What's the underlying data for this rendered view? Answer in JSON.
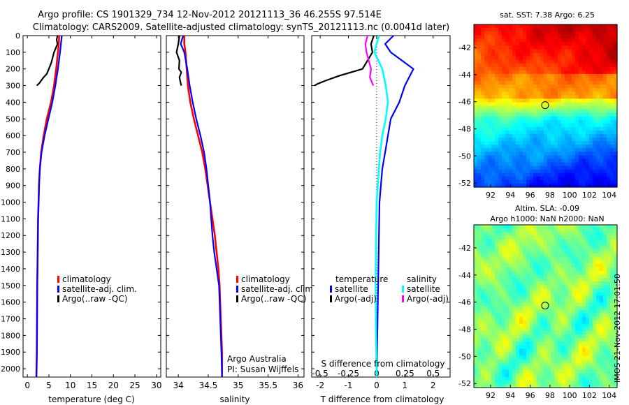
{
  "header": {
    "line1": "Argo profile: CS 1901329_734 12-Nov-2012 20121113_36 46.255S 97.514E",
    "line2": "Climatology: CARS2009. Satellite-adjusted climatology: synTS_20121113.nc (0.0041d later)"
  },
  "stamp": "IMOS 21-Nov-2012 17:01:50",
  "colors": {
    "climatology": "#ff0000",
    "satellite": "#0000ff",
    "argo": "#000000",
    "satellite_s": "#00ffff",
    "argo_s": "#ff00ff",
    "marker": "#000000"
  },
  "chart_data": [
    {
      "id": "temperature",
      "type": "line",
      "xlabel": "temperature (deg C)",
      "ylabel": "",
      "xlim": [
        -1,
        31
      ],
      "ylim": [
        2050,
        0
      ],
      "xticks": [
        "0",
        "5",
        "10",
        "15",
        "20",
        "25",
        "30"
      ],
      "xtick_values": [
        0,
        5,
        10,
        15,
        20,
        25,
        30
      ],
      "yticks": [
        "0",
        "100",
        "200",
        "300",
        "400",
        "500",
        "600",
        "700",
        "800",
        "900",
        "1000",
        "1100",
        "1200",
        "1300",
        "1400",
        "1500",
        "1600",
        "1700",
        "1800",
        "1900",
        "2000"
      ],
      "ytick_values": [
        0,
        100,
        200,
        300,
        400,
        500,
        600,
        700,
        800,
        900,
        1000,
        1100,
        1200,
        1300,
        1400,
        1500,
        1600,
        1700,
        1800,
        1900,
        2000
      ],
      "legend": [
        "climatology",
        "satellite-adj. clim.",
        "Argo(..raw -QC)"
      ],
      "series": [
        {
          "name": "climatology",
          "color_key": "climatology",
          "width": 2.6,
          "x": [
            7.4,
            7.3,
            7.1,
            6.7,
            6.2,
            5.5,
            4.5,
            3.8,
            3.2,
            2.9,
            2.7,
            2.6,
            2.5,
            2.45,
            2.4,
            2.35,
            2.3,
            2.25,
            2.2,
            2.1
          ],
          "y": [
            0,
            50,
            100,
            200,
            300,
            400,
            500,
            600,
            700,
            800,
            900,
            1000,
            1100,
            1200,
            1300,
            1400,
            1500,
            1700,
            1900,
            2050
          ]
        },
        {
          "name": "satellite-adj. clim.",
          "color_key": "satellite",
          "width": 2.2,
          "x": [
            8.0,
            7.8,
            7.6,
            7.1,
            6.5,
            5.8,
            4.9,
            4.0,
            3.3,
            2.9,
            2.7,
            2.6,
            2.5,
            2.45,
            2.4,
            2.35,
            2.3,
            2.25,
            2.2,
            2.1
          ],
          "y": [
            0,
            50,
            100,
            200,
            300,
            400,
            500,
            600,
            700,
            800,
            900,
            1000,
            1100,
            1200,
            1300,
            1400,
            1500,
            1700,
            1900,
            2050
          ]
        },
        {
          "name": "Argo(..raw -QC)",
          "color_key": "argo",
          "width": 2.2,
          "x": [
            7.0,
            6.8,
            7.0,
            6.2,
            5.6,
            5.0,
            4.5,
            3.8,
            3.2,
            2.8,
            2.2
          ],
          "y": [
            0,
            25,
            50,
            100,
            160,
            200,
            230,
            250,
            270,
            285,
            300
          ]
        }
      ]
    },
    {
      "id": "salinity",
      "type": "line",
      "xlabel": "salinity",
      "ylabel": "",
      "xlim": [
        33.8,
        36.1
      ],
      "ylim": [
        2050,
        0
      ],
      "xticks": [
        "34",
        "34.5",
        "35",
        "35.5",
        "36"
      ],
      "xtick_values": [
        34,
        34.5,
        35,
        35.5,
        36
      ],
      "legend": [
        "climatology",
        "satellite-adj. clim.",
        "Argo(..raw -QC)"
      ],
      "notes": [
        "Argo Australia",
        "PI: Susan Wijffels"
      ],
      "series": [
        {
          "name": "climatology",
          "color_key": "climatology",
          "width": 2.6,
          "x": [
            34.1,
            34.1,
            34.12,
            34.14,
            34.16,
            34.2,
            34.26,
            34.33,
            34.4,
            34.45,
            34.49,
            34.53,
            34.57,
            34.61,
            34.64,
            34.67,
            34.69,
            34.71,
            34.73,
            34.73
          ],
          "y": [
            0,
            50,
            100,
            200,
            300,
            400,
            500,
            600,
            700,
            800,
            900,
            1000,
            1100,
            1200,
            1300,
            1400,
            1500,
            1700,
            1900,
            2050
          ]
        },
        {
          "name": "satellite-adj. clim.",
          "color_key": "satellite",
          "width": 2.2,
          "x": [
            34.08,
            34.04,
            34.1,
            34.15,
            34.19,
            34.24,
            34.3,
            34.37,
            34.43,
            34.47,
            34.5,
            34.53,
            34.55,
            34.57,
            34.6,
            34.64,
            34.68,
            34.7,
            34.72,
            34.73
          ],
          "y": [
            0,
            50,
            100,
            200,
            300,
            400,
            500,
            600,
            700,
            800,
            900,
            1000,
            1100,
            1200,
            1300,
            1400,
            1500,
            1700,
            1900,
            2050
          ]
        },
        {
          "name": "Argo(..raw -QC)",
          "color_key": "argo",
          "width": 2.2,
          "x": [
            34.02,
            34.0,
            33.97,
            34.02,
            34.01,
            34.05,
            34.02,
            34.03,
            34.05
          ],
          "y": [
            0,
            50,
            100,
            150,
            200,
            220,
            250,
            270,
            300
          ]
        }
      ]
    },
    {
      "id": "difference",
      "type": "line",
      "xlabel": "T difference from climatology",
      "xlabel_top": "S difference from climatology",
      "ylabel": "",
      "xlim": [
        -2.3,
        2.6
      ],
      "ylim": [
        2050,
        0
      ],
      "xticks": [
        "-2",
        "-1",
        "0",
        "1",
        "2"
      ],
      "xtick_values": [
        -2,
        -1,
        0,
        1,
        2
      ],
      "s_ticks": [
        "-0.5",
        "-0.25",
        "0",
        "0.25",
        "0.5"
      ],
      "s_tick_values": [
        -0.5,
        -0.25,
        0,
        0.25,
        0.5
      ],
      "s_scale": 4,
      "legend_titles": [
        "temperature",
        "salinity"
      ],
      "legend": [
        "satellite",
        "Argo(-adj)",
        "satellite",
        "Argo(-adj)"
      ],
      "series": [
        {
          "name": "satellite",
          "group": "temperature",
          "color_key": "satellite",
          "width": 2.2,
          "x": [
            0.6,
            0.3,
            0.5,
            1.3,
            1.0,
            0.8,
            0.5,
            0.4,
            0.3,
            0.2,
            0.1,
            0.0
          ],
          "y": [
            0,
            50,
            100,
            200,
            300,
            400,
            500,
            600,
            700,
            800,
            1000,
            2050
          ]
        },
        {
          "name": "Argo(-adj)",
          "group": "temperature",
          "color_key": "argo",
          "width": 2.2,
          "x": [
            -0.1,
            -0.2,
            -0.15,
            -0.5,
            -1.3,
            -1.8,
            -2.1,
            -2.2
          ],
          "y": [
            0,
            50,
            100,
            200,
            240,
            270,
            290,
            300
          ]
        },
        {
          "name": "satellite",
          "group": "salinity",
          "color_key": "satellite_s",
          "width": 2.6,
          "x": [
            0.02,
            0.0,
            -0.02,
            0.05,
            0.08,
            0.1,
            0.08,
            0.05,
            0.03,
            0.02,
            0.0,
            -0.01,
            0.0
          ],
          "y": [
            0,
            50,
            100,
            200,
            300,
            400,
            500,
            600,
            700,
            800,
            1000,
            1500,
            2050
          ]
        },
        {
          "name": "Argo(-adj)",
          "group": "salinity",
          "color_key": "argo_s",
          "width": 2.2,
          "x": [
            -0.08,
            -0.1,
            -0.09,
            -0.05,
            -0.06,
            -0.03
          ],
          "y": [
            0,
            50,
            100,
            200,
            250,
            300
          ]
        }
      ]
    },
    {
      "id": "sst-map",
      "type": "heatmap",
      "title": "sat. SST: 7.38 Argo: 6.25",
      "xticks": [
        "92",
        "94",
        "96",
        "98",
        "100",
        "102",
        "104"
      ],
      "xtick_values": [
        92,
        94,
        96,
        98,
        100,
        102,
        104
      ],
      "yticks": [
        "-42",
        "-44",
        "-46",
        "-48",
        "-50",
        "-52"
      ],
      "ytick_values": [
        -42,
        -44,
        -46,
        -48,
        -50,
        -52
      ],
      "xlim": [
        90.3,
        104.8
      ],
      "ylim": [
        -52.3,
        -40.3
      ],
      "marker": {
        "lon": 97.514,
        "lat": -46.255
      }
    },
    {
      "id": "sla-map",
      "type": "heatmap",
      "title": "Altim. SLA: -0.09",
      "subtitle": "Argo h1000: NaN h2000: NaN",
      "xticks": [
        "92",
        "94",
        "96",
        "98",
        "100",
        "102",
        "104"
      ],
      "xtick_values": [
        92,
        94,
        96,
        98,
        100,
        102,
        104
      ],
      "yticks": [
        "-42",
        "-44",
        "-46",
        "-48",
        "-50",
        "-52"
      ],
      "ytick_values": [
        -42,
        -44,
        -46,
        -48,
        -50,
        -52
      ],
      "xlim": [
        90.3,
        104.8
      ],
      "ylim": [
        -52.3,
        -40.3
      ],
      "marker": {
        "lon": 97.514,
        "lat": -46.255
      }
    }
  ]
}
